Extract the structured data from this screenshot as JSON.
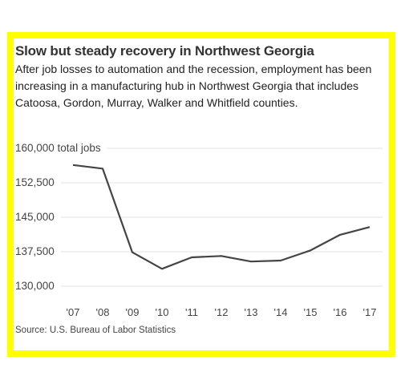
{
  "colors": {
    "frame": "#ffff00",
    "line": "#444444",
    "grid": "#e3e3e3"
  },
  "title": "Slow but steady recovery in Northwest Georgia",
  "subtitle": "After job losses to automation and the recession, employment has been increasing in a manufacturing hub in Northwest Georgia that includes Catoosa, Gordon, Murray, Walker and Whitfield counties.",
  "source": "Source: U.S. Bureau of Labor Statistics",
  "chart_data": {
    "type": "line",
    "title": "Slow but steady recovery in Northwest Georgia",
    "xlabel": "",
    "ylabel": "",
    "ylim": [
      130000,
      160000
    ],
    "y_ticks": [
      {
        "value": 160000,
        "label": "160,000 total jobs"
      },
      {
        "value": 152500,
        "label": "152,500"
      },
      {
        "value": 145000,
        "label": "145,000"
      },
      {
        "value": 137500,
        "label": "137,500"
      },
      {
        "value": 130000,
        "label": "130,000"
      }
    ],
    "categories": [
      "'07",
      "'08",
      "'09",
      "'10",
      "'11",
      "'12",
      "'13",
      "'14",
      "'15",
      "'16",
      "'17"
    ],
    "series": [
      {
        "values": [
          157600,
          156800,
          138600,
          135000,
          137500,
          137800,
          136600,
          136800,
          139000,
          142400,
          144100
        ]
      }
    ],
    "grid": true
  }
}
